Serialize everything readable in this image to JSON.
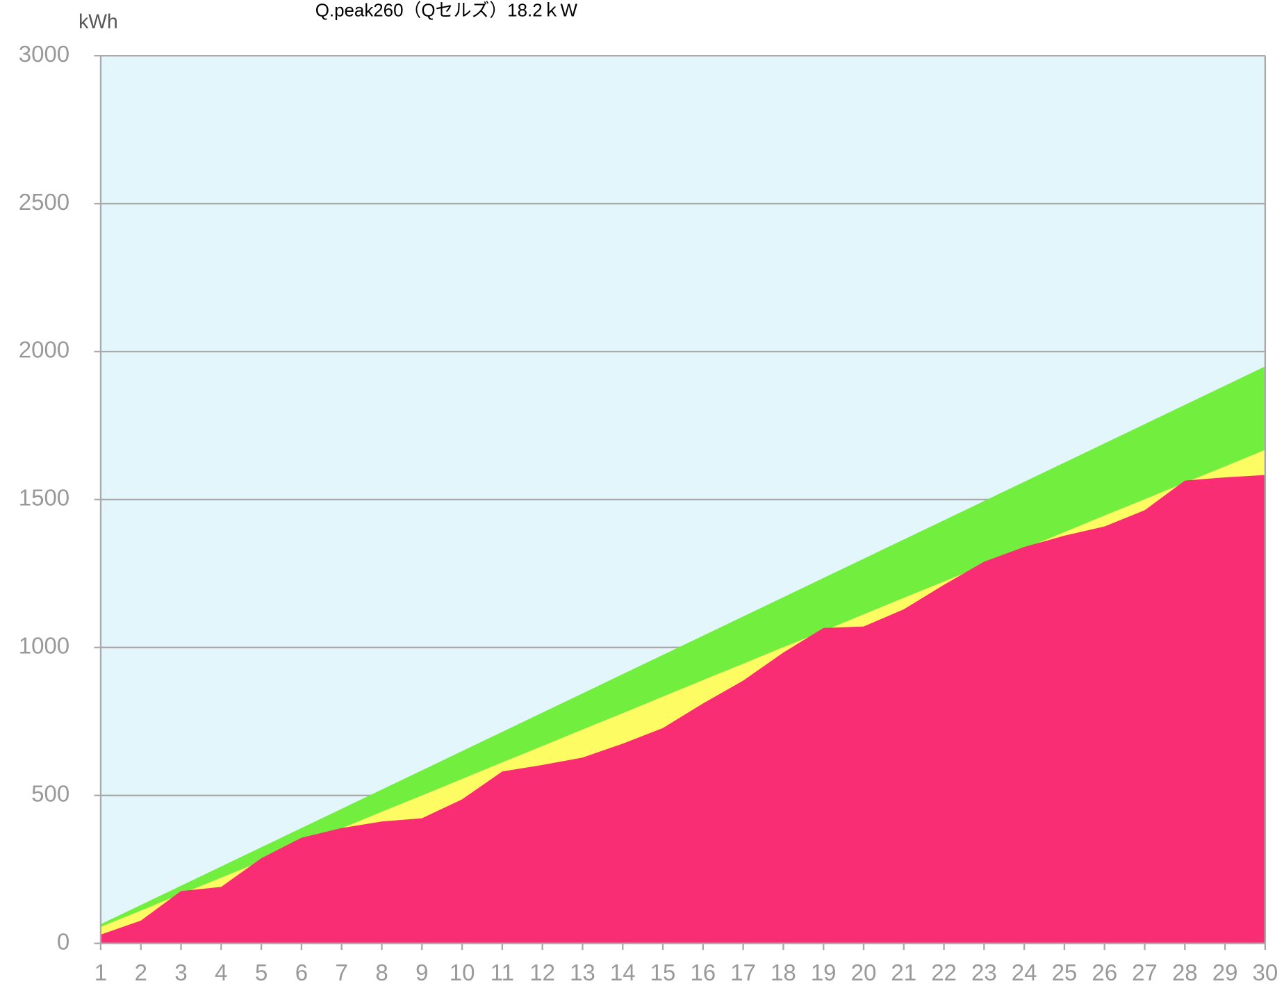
{
  "chart_data": {
    "type": "area",
    "title": "Q.peak260（Qセルズ）18.2ｋW",
    "y_label": "kWh",
    "x": [
      1,
      2,
      3,
      4,
      5,
      6,
      7,
      8,
      9,
      10,
      11,
      12,
      13,
      14,
      15,
      16,
      17,
      18,
      19,
      20,
      21,
      22,
      23,
      24,
      25,
      26,
      27,
      28,
      29,
      30
    ],
    "xlim": [
      1,
      30
    ],
    "ylim": [
      0,
      3000
    ],
    "yticks": [
      0,
      500,
      1000,
      1500,
      2000,
      2500,
      3000
    ],
    "grid": true,
    "background": "#e3f6fc",
    "series": [
      {
        "color": "#72ee3f",
        "values": [
          65,
          130,
          195,
          260,
          325,
          390,
          455,
          520,
          585,
          650,
          715,
          780,
          845,
          910,
          975,
          1040,
          1105,
          1170,
          1235,
          1300,
          1365,
          1430,
          1495,
          1560,
          1625,
          1690,
          1755,
          1820,
          1885,
          1950
        ]
      },
      {
        "color": "#fdfd63",
        "values": [
          56,
          111,
          167,
          222,
          278,
          334,
          389,
          445,
          500,
          556,
          612,
          667,
          723,
          778,
          834,
          890,
          945,
          1001,
          1056,
          1112,
          1168,
          1223,
          1279,
          1334,
          1390,
          1446,
          1501,
          1557,
          1612,
          1668
        ]
      },
      {
        "color": "#f92d74",
        "values": [
          30,
          77,
          177,
          191,
          288,
          357,
          390,
          412,
          423,
          487,
          581,
          603,
          628,
          675,
          728,
          811,
          888,
          983,
          1066,
          1071,
          1129,
          1212,
          1290,
          1340,
          1378,
          1409,
          1464,
          1564,
          1575,
          1583
        ]
      }
    ]
  }
}
